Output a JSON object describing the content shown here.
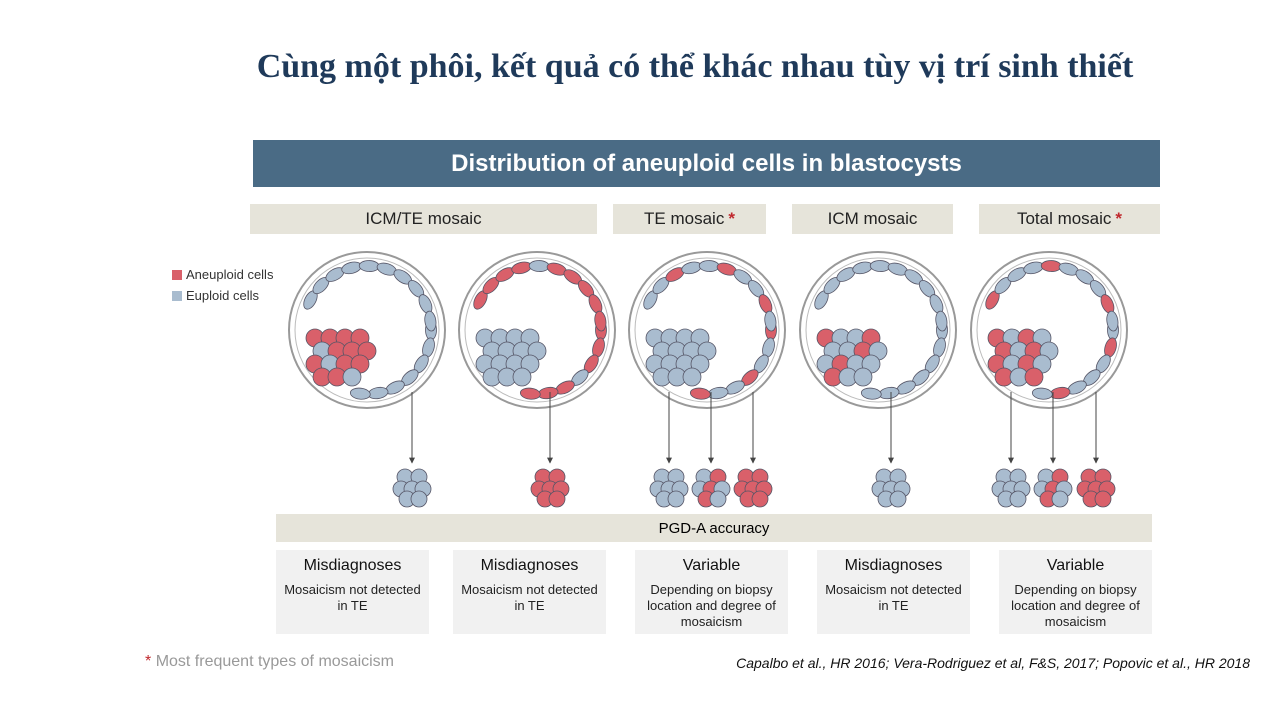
{
  "header": {
    "title": "Cùng một phôi, kết quả có thể khác nhau tùy vị trí sinh thiết"
  },
  "figure": {
    "banner": "Distribution of aneuploid cells in blastocysts",
    "categories": [
      {
        "label": "ICM/TE mosaic"
      },
      {
        "label": "TE mosaic",
        "star": "*"
      },
      {
        "label": "ICM mosaic"
      },
      {
        "label": "Total mosaic",
        "star": "*"
      }
    ],
    "legend": [
      "Aneuploid cells",
      "Euploid cells"
    ],
    "accuracy_label": "PGD-A accuracy",
    "outcomes": [
      {
        "heading": "Misdiagnoses",
        "text": "Mosaicism not detected in TE"
      },
      {
        "heading": "Misdiagnoses",
        "text": "Mosaicism not detected in TE"
      },
      {
        "heading": "Variable",
        "text": "Depending on biopsy location and degree of mosaicism"
      },
      {
        "heading": "Misdiagnoses",
        "text": "Mosaicism not detected in TE"
      },
      {
        "heading": "Variable",
        "text": "Depending on biopsy location and degree of mosaicism"
      }
    ]
  },
  "footer": {
    "star": "*",
    "note": "Most frequent types of mosaicism",
    "citation": "Capalbo et al., HR 2016; Vera-Rodriguez et al, F&S, 2017; Popovic et al., HR 2018"
  }
}
